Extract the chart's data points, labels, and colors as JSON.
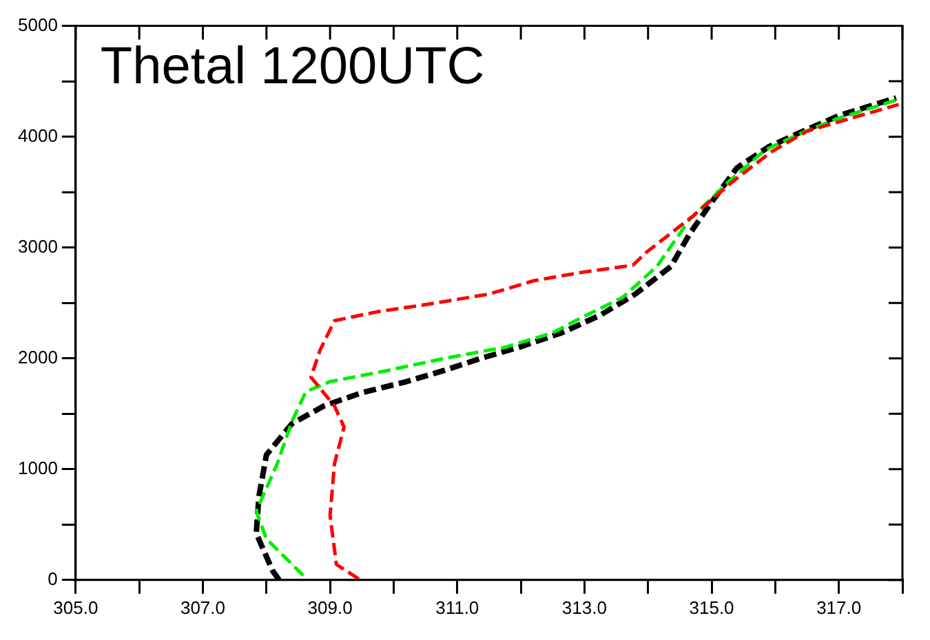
{
  "chart_data": {
    "type": "line",
    "title": "Thetal 1200UTC",
    "xlim": [
      305,
      318
    ],
    "ylim": [
      0,
      5000
    ],
    "xticks": [
      {
        "value": 305,
        "label": "305.0"
      },
      {
        "value": 306,
        "label": null
      },
      {
        "value": 307,
        "label": "307.0"
      },
      {
        "value": 308,
        "label": null
      },
      {
        "value": 309,
        "label": "309.0"
      },
      {
        "value": 310,
        "label": null
      },
      {
        "value": 311,
        "label": "311.0"
      },
      {
        "value": 312,
        "label": null
      },
      {
        "value": 313,
        "label": "313.0"
      },
      {
        "value": 314,
        "label": null
      },
      {
        "value": 315,
        "label": "315.0"
      },
      {
        "value": 316,
        "label": null
      },
      {
        "value": 317,
        "label": "317.0"
      },
      {
        "value": 318,
        "label": null
      }
    ],
    "yticks": [
      0,
      {
        "value": 500,
        "label": null
      },
      1000,
      {
        "value": 1500,
        "label": null
      },
      2000,
      {
        "value": 2500,
        "label": null
      },
      3000,
      {
        "value": 3500,
        "label": null
      },
      4000,
      {
        "value": 4500,
        "label": null
      },
      5000
    ],
    "grid": false,
    "legend": false,
    "marker": "none",
    "line_style": "dashed",
    "series": [
      {
        "color": "#ff0000",
        "x": [
          309.45,
          309.1,
          309.0,
          309.07,
          309.22,
          309.07,
          308.7,
          308.84,
          309.07,
          309.74,
          310.56,
          311.5,
          312.2,
          313.0,
          313.76,
          313.98,
          314.72,
          315.32,
          315.93,
          316.5,
          317.27,
          317.94
        ],
        "values": [
          10,
          140,
          580,
          1050,
          1380,
          1570,
          1830,
          2070,
          2340,
          2420,
          2490,
          2580,
          2700,
          2780,
          2840,
          2960,
          3290,
          3590,
          3860,
          4050,
          4180,
          4290
        ]
      },
      {
        "color": "#00ee00",
        "x": [
          308.58,
          308.0,
          307.84,
          308.17,
          308.4,
          308.62,
          309.0,
          309.9,
          310.8,
          311.75,
          312.5,
          312.93,
          313.6,
          314.14,
          314.65,
          315.26,
          315.84,
          316.44,
          316.96,
          317.9
        ],
        "values": [
          40,
          370,
          620,
          1050,
          1430,
          1700,
          1790,
          1890,
          2000,
          2100,
          2230,
          2360,
          2550,
          2830,
          3250,
          3590,
          3880,
          4040,
          4160,
          4330
        ]
      },
      {
        "color": "#000000",
        "x": [
          308.2,
          308.1,
          307.84,
          307.88,
          308.0,
          308.4,
          308.9,
          309.5,
          310.2,
          310.79,
          311.37,
          311.97,
          312.64,
          313.25,
          313.8,
          314.36,
          314.65,
          315.0,
          315.4,
          315.9,
          316.4,
          317.0,
          317.9
        ],
        "values": [
          0,
          80,
          420,
          750,
          1130,
          1410,
          1570,
          1690,
          1790,
          1890,
          2000,
          2100,
          2230,
          2390,
          2580,
          2830,
          3120,
          3410,
          3720,
          3910,
          4040,
          4190,
          4350
        ]
      }
    ]
  }
}
